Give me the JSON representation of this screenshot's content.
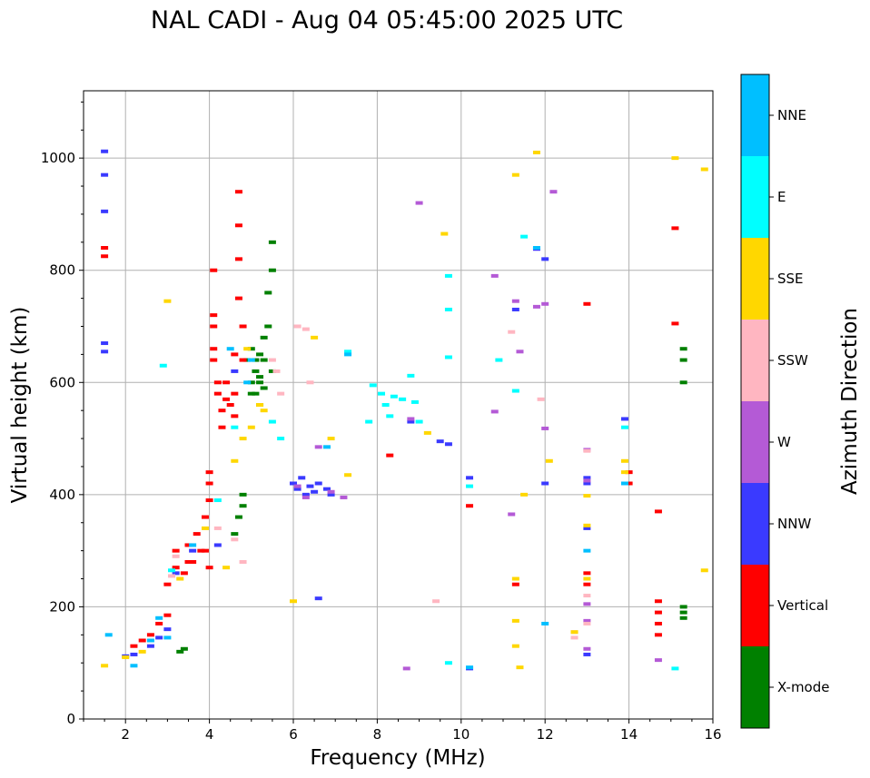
{
  "chart_data": {
    "type": "scatter",
    "title": "NAL CADI - Aug 04 05:45:00 2025 UTC",
    "xlabel": "Frequency (MHz)",
    "ylabel": "Virtual height (km)",
    "xlim": [
      1,
      16
    ],
    "ylim": [
      0,
      1120
    ],
    "xticks": [
      2,
      4,
      6,
      8,
      10,
      12,
      14,
      16
    ],
    "yticks": [
      0,
      200,
      400,
      600,
      800,
      1000
    ],
    "grid": true,
    "colorbar": {
      "label": "Azimuth Direction",
      "categories": [
        {
          "name": "X-mode",
          "color": "#008000"
        },
        {
          "name": "Vertical",
          "color": "#ff0000"
        },
        {
          "name": "NNW",
          "color": "#3a3aff"
        },
        {
          "name": "W",
          "color": "#b45ad6"
        },
        {
          "name": "SSW",
          "color": "#ffb6c1"
        },
        {
          "name": "SSE",
          "color": "#ffd700"
        },
        {
          "name": "E",
          "color": "#00ffff"
        },
        {
          "name": "NNE",
          "color": "#00bfff"
        }
      ]
    },
    "series": [
      {
        "name": "X-mode",
        "points": [
          [
            3.3,
            120
          ],
          [
            3.4,
            125
          ],
          [
            4.6,
            330
          ],
          [
            4.7,
            360
          ],
          [
            4.8,
            380
          ],
          [
            4.8,
            400
          ],
          [
            4.9,
            640
          ],
          [
            5.0,
            600
          ],
          [
            5.1,
            620
          ],
          [
            5.1,
            580
          ],
          [
            5.2,
            560
          ],
          [
            5.2,
            600
          ],
          [
            5.3,
            640
          ],
          [
            5.3,
            680
          ],
          [
            5.4,
            700
          ],
          [
            5.4,
            760
          ],
          [
            5.5,
            800
          ],
          [
            5.5,
            850
          ],
          [
            5.5,
            620
          ],
          [
            5.0,
            660
          ],
          [
            5.2,
            650
          ],
          [
            5.1,
            640
          ],
          [
            5.3,
            590
          ],
          [
            5.2,
            610
          ],
          [
            5.0,
            580
          ],
          [
            15.3,
            640
          ],
          [
            15.3,
            660
          ],
          [
            15.3,
            600
          ],
          [
            15.3,
            190
          ],
          [
            15.3,
            200
          ],
          [
            15.3,
            180
          ]
        ]
      },
      {
        "name": "Vertical",
        "points": [
          [
            1.5,
            825
          ],
          [
            1.5,
            840
          ],
          [
            2.2,
            130
          ],
          [
            2.4,
            140
          ],
          [
            2.6,
            150
          ],
          [
            2.8,
            170
          ],
          [
            3.0,
            185
          ],
          [
            3.0,
            240
          ],
          [
            3.2,
            270
          ],
          [
            3.2,
            300
          ],
          [
            3.4,
            260
          ],
          [
            3.5,
            310
          ],
          [
            3.6,
            280
          ],
          [
            3.7,
            330
          ],
          [
            3.8,
            300
          ],
          [
            3.9,
            360
          ],
          [
            4.0,
            420
          ],
          [
            4.0,
            440
          ],
          [
            4.0,
            390
          ],
          [
            4.0,
            270
          ],
          [
            4.1,
            720
          ],
          [
            4.1,
            700
          ],
          [
            4.1,
            660
          ],
          [
            4.1,
            640
          ],
          [
            4.1,
            800
          ],
          [
            4.2,
            600
          ],
          [
            4.2,
            580
          ],
          [
            4.3,
            550
          ],
          [
            4.3,
            520
          ],
          [
            4.4,
            570
          ],
          [
            4.4,
            600
          ],
          [
            4.5,
            560
          ],
          [
            4.6,
            540
          ],
          [
            4.6,
            580
          ],
          [
            4.7,
            880
          ],
          [
            4.7,
            940
          ],
          [
            4.7,
            820
          ],
          [
            4.7,
            750
          ],
          [
            4.6,
            650
          ],
          [
            4.8,
            640
          ],
          [
            4.8,
            700
          ],
          [
            3.9,
            300
          ],
          [
            3.5,
            280
          ],
          [
            8.3,
            470
          ],
          [
            10.2,
            380
          ],
          [
            11.3,
            240
          ],
          [
            13.0,
            740
          ],
          [
            13.0,
            260
          ],
          [
            13.0,
            240
          ],
          [
            14.0,
            440
          ],
          [
            14.0,
            420
          ],
          [
            14.7,
            370
          ],
          [
            14.7,
            210
          ],
          [
            14.7,
            190
          ],
          [
            14.7,
            170
          ],
          [
            14.7,
            150
          ],
          [
            15.1,
            875
          ],
          [
            15.1,
            705
          ]
        ]
      },
      {
        "name": "NNW",
        "points": [
          [
            1.5,
            1012
          ],
          [
            1.5,
            970
          ],
          [
            1.5,
            905
          ],
          [
            1.5,
            670
          ],
          [
            1.5,
            655
          ],
          [
            2.0,
            112
          ],
          [
            2.2,
            115
          ],
          [
            2.6,
            130
          ],
          [
            2.8,
            145
          ],
          [
            3.0,
            160
          ],
          [
            3.2,
            260
          ],
          [
            3.6,
            300
          ],
          [
            4.2,
            310
          ],
          [
            4.6,
            620
          ],
          [
            6.0,
            420
          ],
          [
            6.1,
            410
          ],
          [
            6.2,
            430
          ],
          [
            6.3,
            400
          ],
          [
            6.4,
            415
          ],
          [
            6.5,
            405
          ],
          [
            6.6,
            420
          ],
          [
            6.8,
            410
          ],
          [
            6.9,
            400
          ],
          [
            6.6,
            215
          ],
          [
            8.8,
            530
          ],
          [
            9.5,
            495
          ],
          [
            9.7,
            490
          ],
          [
            10.2,
            430
          ],
          [
            10.2,
            90
          ],
          [
            11.3,
            730
          ],
          [
            11.8,
            838
          ],
          [
            12.0,
            820
          ],
          [
            12.0,
            420
          ],
          [
            13.0,
            430
          ],
          [
            13.0,
            420
          ],
          [
            13.0,
            340
          ],
          [
            13.0,
            115
          ],
          [
            13.9,
            535
          ]
        ]
      },
      {
        "name": "W",
        "points": [
          [
            6.1,
            415
          ],
          [
            6.3,
            395
          ],
          [
            6.6,
            485
          ],
          [
            6.9,
            405
          ],
          [
            7.2,
            395
          ],
          [
            8.8,
            535
          ],
          [
            9.0,
            920
          ],
          [
            10.8,
            790
          ],
          [
            10.8,
            548
          ],
          [
            11.2,
            365
          ],
          [
            11.3,
            745
          ],
          [
            11.4,
            655
          ],
          [
            11.8,
            735
          ],
          [
            12.0,
            518
          ],
          [
            12.0,
            740
          ],
          [
            12.2,
            940
          ],
          [
            13.0,
            480
          ],
          [
            13.0,
            425
          ],
          [
            13.0,
            205
          ],
          [
            13.0,
            125
          ],
          [
            13.0,
            175
          ],
          [
            14.7,
            105
          ],
          [
            8.7,
            90
          ]
        ]
      },
      {
        "name": "SSW",
        "points": [
          [
            3.1,
            255
          ],
          [
            3.2,
            290
          ],
          [
            4.2,
            340
          ],
          [
            4.6,
            320
          ],
          [
            4.8,
            280
          ],
          [
            5.5,
            640
          ],
          [
            5.6,
            620
          ],
          [
            5.7,
            580
          ],
          [
            6.1,
            700
          ],
          [
            6.3,
            695
          ],
          [
            6.4,
            600
          ],
          [
            9.4,
            210
          ],
          [
            11.2,
            690
          ],
          [
            11.9,
            570
          ],
          [
            12.7,
            155
          ],
          [
            12.7,
            145
          ],
          [
            13.0,
            478
          ],
          [
            13.0,
            220
          ],
          [
            13.0,
            170
          ]
        ]
      },
      {
        "name": "SSE",
        "points": [
          [
            1.5,
            95
          ],
          [
            2.0,
            110
          ],
          [
            2.4,
            120
          ],
          [
            3.0,
            745
          ],
          [
            3.3,
            250
          ],
          [
            3.9,
            340
          ],
          [
            4.4,
            270
          ],
          [
            4.6,
            460
          ],
          [
            4.8,
            500
          ],
          [
            4.9,
            660
          ],
          [
            5.0,
            520
          ],
          [
            5.2,
            560
          ],
          [
            5.3,
            550
          ],
          [
            6.0,
            210
          ],
          [
            6.5,
            680
          ],
          [
            6.9,
            500
          ],
          [
            7.3,
            435
          ],
          [
            9.2,
            510
          ],
          [
            9.6,
            865
          ],
          [
            11.3,
            970
          ],
          [
            11.3,
            250
          ],
          [
            11.3,
            175
          ],
          [
            11.3,
            130
          ],
          [
            11.4,
            92
          ],
          [
            11.5,
            400
          ],
          [
            11.8,
            1010
          ],
          [
            12.1,
            460
          ],
          [
            12.7,
            155
          ],
          [
            13.0,
            398
          ],
          [
            13.0,
            345
          ],
          [
            13.0,
            250
          ],
          [
            13.9,
            460
          ],
          [
            13.9,
            440
          ],
          [
            15.1,
            1000
          ],
          [
            15.8,
            980
          ],
          [
            15.8,
            265
          ]
        ]
      },
      {
        "name": "E",
        "points": [
          [
            2.9,
            630
          ],
          [
            3.1,
            265
          ],
          [
            4.2,
            390
          ],
          [
            4.6,
            520
          ],
          [
            5.5,
            530
          ],
          [
            5.7,
            500
          ],
          [
            7.3,
            655
          ],
          [
            7.8,
            530
          ],
          [
            7.9,
            595
          ],
          [
            8.1,
            580
          ],
          [
            8.2,
            560
          ],
          [
            8.3,
            540
          ],
          [
            8.4,
            575
          ],
          [
            8.6,
            570
          ],
          [
            8.8,
            612
          ],
          [
            8.9,
            565
          ],
          [
            9.0,
            530
          ],
          [
            9.7,
            730
          ],
          [
            9.7,
            790
          ],
          [
            9.7,
            645
          ],
          [
            9.7,
            100
          ],
          [
            10.2,
            415
          ],
          [
            10.9,
            640
          ],
          [
            11.3,
            585
          ],
          [
            11.5,
            860
          ],
          [
            13.9,
            520
          ],
          [
            15.1,
            90
          ]
        ]
      },
      {
        "name": "NNE",
        "points": [
          [
            1.6,
            150
          ],
          [
            2.2,
            95
          ],
          [
            2.6,
            140
          ],
          [
            2.8,
            180
          ],
          [
            3.0,
            145
          ],
          [
            3.6,
            310
          ],
          [
            4.5,
            660
          ],
          [
            4.9,
            600
          ],
          [
            5.0,
            640
          ],
          [
            6.8,
            485
          ],
          [
            7.3,
            650
          ],
          [
            10.2,
            92
          ],
          [
            11.8,
            840
          ],
          [
            12.0,
            170
          ],
          [
            13.0,
            300
          ],
          [
            13.9,
            420
          ]
        ]
      }
    ]
  }
}
